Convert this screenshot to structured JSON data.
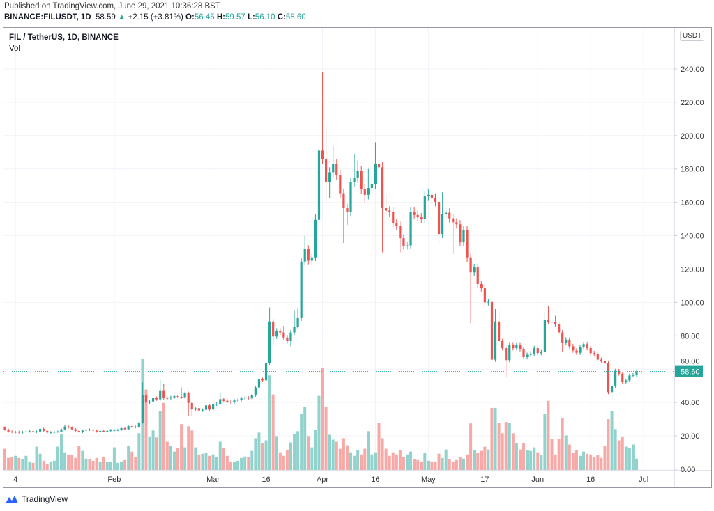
{
  "header": {
    "published": "Published on TradingView.com, June 29, 2021 10:36:28 BST",
    "symbol": "BINANCE:FILUSDT, 1D",
    "last": "58.59",
    "change_arrow": "▲",
    "change": "+2.15 (+3.81%)",
    "o_label": "O:",
    "o": "56.45",
    "h_label": "H:",
    "h": "59.57",
    "l_label": "L:",
    "l": "56.10",
    "c_label": "C:",
    "c": "58.60"
  },
  "legend": {
    "title": "FIL / TetherUS, 1D, BINANCE",
    "vol": "Vol"
  },
  "currency_badge": "USDT",
  "footer": {
    "brand": "TradingView"
  },
  "colors": {
    "up": "#26a69a",
    "down": "#ef5350",
    "up_vol": "#92d2cc",
    "down_vol": "#f7a9a7",
    "grid": "#f0f3fa"
  },
  "chart_data": {
    "type": "candlestick",
    "title": "FIL / TetherUS, 1D, BINANCE",
    "ylabel": "USDT",
    "ylim": [
      0,
      260
    ],
    "y_ticks": [
      "0.00",
      "20.00",
      "40.00",
      "60.00",
      "80.00",
      "100.00",
      "120.00",
      "140.00",
      "160.00",
      "180.00",
      "200.00",
      "220.00",
      "240.00"
    ],
    "x_ticks": [
      {
        "label": "4",
        "index": 3
      },
      {
        "label": "Feb",
        "index": 31
      },
      {
        "label": "Mar",
        "index": 59
      },
      {
        "label": "16",
        "index": 74
      },
      {
        "label": "Apr",
        "index": 90
      },
      {
        "label": "16",
        "index": 105
      },
      {
        "label": "May",
        "index": 120
      },
      {
        "label": "17",
        "index": 136
      },
      {
        "label": "Jun",
        "index": 151
      },
      {
        "label": "16",
        "index": 166
      },
      {
        "label": "Jul",
        "index": 181
      }
    ],
    "first_open": 25,
    "close": [
      23.8,
      22.6,
      22.2,
      22.4,
      22.0,
      22.4,
      22.6,
      22.8,
      22.3,
      22.6,
      24.2,
      23,
      22,
      22.2,
      22.4,
      22.6,
      23.9,
      25.6,
      25,
      24,
      23,
      22.3,
      23.2,
      23.8,
      23.6,
      23.2,
      22.6,
      23,
      22.8,
      23,
      23.4,
      23.5,
      23.6,
      24.6,
      24,
      25.8,
      25.5,
      25.2,
      28,
      44.4,
      40,
      40.6,
      42.7,
      41.9,
      47.3,
      42.7,
      42.5,
      43.1,
      43.8,
      43.4,
      43.2,
      45.5,
      39.7,
      35.8,
      36.6,
      35.2,
      35.6,
      38.3,
      35.8,
      38.8,
      39.2,
      42,
      41,
      40.5,
      40.1,
      41.2,
      41.6,
      42.5,
      42.9,
      42.4,
      44.4,
      49,
      53.8,
      53.3,
      63.6,
      88.6,
      79.6,
      83,
      82,
      79,
      76.8,
      82,
      85.5,
      90.6,
      124.5,
      132,
      125,
      127,
      149.5,
      191,
      186,
      172,
      178,
      183,
      176.5,
      165.4,
      156.5,
      154.4,
      172,
      174.5,
      179,
      168,
      164.5,
      168.6,
      171,
      183,
      181,
      156.5,
      155,
      154,
      147.6,
      146,
      138.5,
      134,
      134.2,
      154.4,
      152.4,
      151,
      150,
      164,
      164.5,
      162.7,
      160.3,
      141,
      152.8,
      153.8,
      150.4,
      148,
      146.8,
      136,
      143.5,
      127,
      118,
      121,
      111,
      108.5,
      100,
      100.3,
      65.7,
      88.6,
      76.8,
      72.6,
      65.4,
      74.7,
      72.6,
      74.7,
      72,
      67.2,
      68.6,
      69.3,
      72.6,
      69.6,
      70.2,
      89.6,
      88.4,
      88.2,
      87.2,
      82,
      76,
      77.7,
      73.7,
      71.2,
      69.8,
      73.3,
      75,
      72.6,
      69.6,
      69.3,
      65.7,
      64.8,
      63.4,
      46.2,
      49.7,
      59,
      57.3,
      52.3,
      53.2,
      56.2,
      56.5,
      58.6
    ],
    "notable_highs": {
      "39": 52,
      "44": 53.4,
      "45": 51,
      "50": 49,
      "61": 45.5,
      "75": 97,
      "79": 86,
      "82": 95,
      "83": 96.4,
      "85": 140,
      "88": 153,
      "89": 197.8,
      "90": 238,
      "91": 206,
      "93": 194,
      "94": 186,
      "99": 189,
      "100": 185,
      "103": 180,
      "104": 175.5,
      "105": 196,
      "106": 193,
      "108": 165,
      "110": 157,
      "120": 168,
      "124": 166,
      "138": 101.8,
      "139": 96,
      "140": 95,
      "153": 94.3,
      "154": 98,
      "156": 92
    },
    "notable_lows": {
      "52": 32,
      "53": 31.6,
      "76": 74,
      "81": 73.6,
      "91": 160.6,
      "92": 162.4,
      "96": 135.6,
      "97": 146.5,
      "102": 160,
      "107": 130,
      "112": 130,
      "123": 135,
      "127": 129,
      "131": 124,
      "132": 87.6,
      "138": 55,
      "142": 55,
      "158": 70.5,
      "171": 45,
      "172": 42.7
    },
    "volume_relative": [
      30,
      17,
      18,
      20,
      17,
      15,
      20,
      12,
      10,
      33,
      23,
      13,
      9,
      12,
      13,
      33,
      51,
      25,
      22,
      21,
      17,
      34,
      27,
      16,
      15,
      13,
      17,
      11,
      18,
      11,
      11,
      32,
      10,
      12,
      14,
      34,
      26,
      18,
      52,
      158,
      114,
      47,
      56,
      46,
      83,
      95,
      40,
      34,
      26,
      31,
      65,
      32,
      62,
      56,
      32,
      22,
      23,
      24,
      20,
      22,
      18,
      40,
      31,
      20,
      12,
      11,
      13,
      17,
      19,
      18,
      27,
      45,
      53,
      38,
      42,
      134,
      107,
      48,
      25,
      20,
      28,
      39,
      51,
      55,
      80,
      89,
      48,
      32,
      57,
      105,
      145,
      90,
      50,
      43,
      40,
      30,
      45,
      35,
      25,
      20,
      28,
      22,
      30,
      55,
      22,
      25,
      67,
      45,
      30,
      20,
      25,
      22,
      28,
      18,
      22,
      26,
      15,
      14,
      12,
      24,
      13,
      12,
      12,
      23,
      17,
      29,
      15,
      12,
      14,
      18,
      16,
      22,
      66,
      28,
      24,
      27,
      33,
      29,
      88,
      88,
      67,
      52,
      68,
      67,
      52,
      38,
      29,
      38,
      28,
      27,
      32,
      25,
      21,
      80,
      98,
      44,
      22,
      44,
      73,
      49,
      36,
      24,
      28,
      20,
      26,
      23,
      22,
      18,
      21,
      17,
      34,
      72,
      83,
      58,
      42,
      47,
      33,
      31,
      36,
      16
    ],
    "last_price_label": "58.60"
  }
}
